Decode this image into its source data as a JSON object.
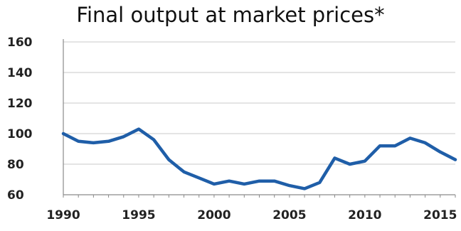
{
  "chart_data": {
    "type": "line",
    "title": "Final output at market prices*",
    "xlabel": "",
    "ylabel": "",
    "xlim": [
      1990,
      2016
    ],
    "ylim": [
      60,
      160
    ],
    "yticks": [
      60,
      80,
      100,
      120,
      140,
      160
    ],
    "xticks": [
      1990,
      1995,
      2000,
      2005,
      2010,
      2015
    ],
    "grid": "horizontal",
    "line_color": "#1f5ea8",
    "series": [
      {
        "x": [
          1990,
          1991,
          1992,
          1993,
          1994,
          1995,
          1996,
          1997,
          1998,
          1999,
          2000,
          2001,
          2002,
          2003,
          2004,
          2005,
          2006,
          2007,
          2008,
          2009,
          2010,
          2011,
          2012,
          2013,
          2014,
          2015,
          2016
        ],
        "y": [
          100,
          95,
          94,
          95,
          98,
          103,
          96,
          83,
          75,
          71,
          67,
          69,
          67,
          69,
          69,
          66,
          64,
          68,
          84,
          80,
          82,
          92,
          92,
          97,
          94,
          88,
          83
        ]
      }
    ]
  }
}
